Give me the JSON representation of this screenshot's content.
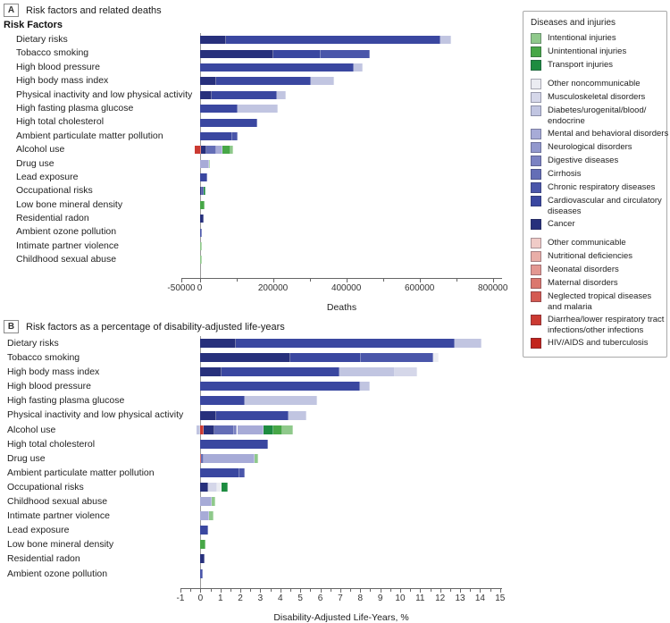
{
  "panelA": {
    "letter": "A",
    "title": "Risk factors and related deaths",
    "heading": "Risk Factors",
    "xlabel": "Deaths"
  },
  "panelB": {
    "letter": "B",
    "title": "Risk factors as a percentage of disability-adjusted life-years",
    "xlabel": "Disability-Adjusted Life-Years, %"
  },
  "colors": {
    "intentional": "#8fc98b",
    "unintentional": "#47a747",
    "transport": "#1d8c40",
    "other_noncommunicable": "#ebecf2",
    "musculoskeletal": "#d5d7e9",
    "diabetes_urogenital": "#c1c5e1",
    "mental": "#a7abd7",
    "neurological": "#9298cd",
    "digestive": "#7b82c2",
    "cirrhosis": "#646eb6",
    "chronic_respiratory": "#4a56aa",
    "cardiovascular": "#3a47a0",
    "cancer": "#27307c",
    "other_communicable": "#f0cbc7",
    "nutritional": "#e9aea8",
    "neonatal": "#e39791",
    "maternal": "#db776e",
    "neglected_tropical": "#d45a52",
    "diarrhea_lri": "#cb3a32",
    "hiv_tb": "#c2241c"
  },
  "legend": {
    "title": "Diseases and injuries",
    "groups": [
      [
        {
          "category": "intentional",
          "label": "Intentional injuries"
        },
        {
          "category": "unintentional",
          "label": "Unintentional injuries"
        },
        {
          "category": "transport",
          "label": "Transport injuries"
        }
      ],
      [
        {
          "category": "other_noncommunicable",
          "label": "Other noncommunicable"
        },
        {
          "category": "musculoskeletal",
          "label": "Musculoskeletal disorders"
        },
        {
          "category": "diabetes_urogenital",
          "label": "Diabetes/urogenital/blood/\nendocrine"
        },
        {
          "category": "mental",
          "label": "Mental and behavioral disorders"
        },
        {
          "category": "neurological",
          "label": "Neurological disorders"
        },
        {
          "category": "digestive",
          "label": "Digestive diseases"
        },
        {
          "category": "cirrhosis",
          "label": "Cirrhosis"
        },
        {
          "category": "chronic_respiratory",
          "label": "Chronic respiratory diseases"
        },
        {
          "category": "cardiovascular",
          "label": "Cardiovascular and circulatory\ndiseases"
        },
        {
          "category": "cancer",
          "label": "Cancer"
        }
      ],
      [
        {
          "category": "other_communicable",
          "label": "Other communicable"
        },
        {
          "category": "nutritional",
          "label": "Nutritional deficiencies"
        },
        {
          "category": "neonatal",
          "label": "Neonatal disorders"
        },
        {
          "category": "maternal",
          "label": "Maternal disorders"
        },
        {
          "category": "neglected_tropical",
          "label": "Neglected tropical diseases\nand malaria"
        },
        {
          "category": "diarrhea_lri",
          "label": "Diarrhea/lower respiratory tract\ninfections/other infections"
        },
        {
          "category": "hiv_tb",
          "label": "HIV/AIDS and tuberculosis"
        }
      ]
    ]
  },
  "chart_data": [
    {
      "type": "bar",
      "orientation": "horizontal-stacked",
      "title": "Risk factors and related deaths",
      "xlabel": "Deaths",
      "xlim": [
        -50000,
        825000
      ],
      "grid": false,
      "legend_position": "right-outside",
      "ticks": {
        "major": [
          {
            "v": -50000,
            "label": "-50000"
          },
          {
            "v": 0,
            "label": "0"
          },
          {
            "v": 200000,
            "label": "200000"
          },
          {
            "v": 400000,
            "label": "400000"
          },
          {
            "v": 600000,
            "label": "600000"
          },
          {
            "v": 800000,
            "label": "800000"
          }
        ],
        "minor": [
          100000,
          300000,
          500000,
          700000
        ]
      },
      "rows": [
        {
          "label": "Dietary risks",
          "segments": [
            [
              "cancer",
              72000
            ],
            [
              "cardiovascular",
              585000
            ],
            [
              "diabetes_urogenital",
              28000
            ]
          ]
        },
        {
          "label": "Tobacco smoking",
          "segments": [
            [
              "cancer",
              200000
            ],
            [
              "cardiovascular",
              130000
            ],
            [
              "chronic_respiratory",
              135000
            ]
          ]
        },
        {
          "label": "High blood pressure",
          "segments": [
            [
              "cardiovascular",
              420000
            ],
            [
              "diabetes_urogenital",
              25000
            ]
          ]
        },
        {
          "label": "High body mass index",
          "segments": [
            [
              "cancer",
              44000
            ],
            [
              "cardiovascular",
              260000
            ],
            [
              "diabetes_urogenital",
              62000
            ]
          ]
        },
        {
          "label": "Physical inactivity and low physical activity",
          "segments": [
            [
              "cancer",
              32000
            ],
            [
              "cardiovascular",
              180000
            ],
            [
              "diabetes_urogenital",
              22000
            ]
          ]
        },
        {
          "label": "High fasting plasma glucose",
          "segments": [
            [
              "cardiovascular",
              104000
            ],
            [
              "diabetes_urogenital",
              110000
            ]
          ]
        },
        {
          "label": "High total cholesterol",
          "segments": [
            [
              "cardiovascular",
              158000
            ]
          ]
        },
        {
          "label": "Ambient particulate matter pollution",
          "segments": [
            [
              "cardiovascular",
              90000
            ],
            [
              "chronic_respiratory",
              13000
            ]
          ]
        },
        {
          "label": "Alcohol use",
          "start": -13000,
          "segments": [
            [
              "diarrhea_lri",
              16000
            ],
            [
              "cancer",
              16000
            ],
            [
              "cirrhosis",
              26000
            ],
            [
              "mental",
              17000
            ],
            [
              "unintentional",
              22000
            ],
            [
              "intentional",
              8000
            ]
          ]
        },
        {
          "label": "Drug use",
          "segments": [
            [
              "cirrhosis",
              2000
            ],
            [
              "mental",
              23000
            ],
            [
              "intentional",
              3000
            ]
          ]
        },
        {
          "label": "Lead exposure",
          "segments": [
            [
              "cardiovascular",
              21000
            ]
          ]
        },
        {
          "label": "Occupational risks",
          "segments": [
            [
              "cancer",
              5000
            ],
            [
              "chronic_respiratory",
              5000
            ],
            [
              "transport",
              6000
            ]
          ]
        },
        {
          "label": "Low bone mineral density",
          "segments": [
            [
              "unintentional",
              13000
            ]
          ]
        },
        {
          "label": "Residential radon",
          "segments": [
            [
              "cancer",
              10000
            ]
          ]
        },
        {
          "label": "Ambient ozone pollution",
          "segments": [
            [
              "chronic_respiratory",
              7000
            ]
          ]
        },
        {
          "label": "Intimate partner violence",
          "segments": [
            [
              "intentional",
              5000
            ]
          ]
        },
        {
          "label": "Childhood sexual abuse",
          "segments": [
            [
              "mental",
              2000
            ],
            [
              "intentional",
              4000
            ]
          ]
        }
      ]
    },
    {
      "type": "bar",
      "orientation": "horizontal-stacked",
      "title": "Risk factors as a percentage of disability-adjusted life-years",
      "xlabel": "Disability-Adjusted Life-Years, %",
      "xlim": [
        -1,
        15.1
      ],
      "grid": false,
      "legend_position": "right-outside",
      "ticks": {
        "major": [
          {
            "v": -1,
            "label": "-1"
          },
          {
            "v": 0,
            "label": "0"
          },
          {
            "v": 1,
            "label": "1"
          },
          {
            "v": 2,
            "label": "2"
          },
          {
            "v": 3,
            "label": "3"
          },
          {
            "v": 4,
            "label": "4"
          },
          {
            "v": 5,
            "label": "5"
          },
          {
            "v": 6,
            "label": "6"
          },
          {
            "v": 7,
            "label": "7"
          },
          {
            "v": 8,
            "label": "8"
          },
          {
            "v": 9,
            "label": "9"
          },
          {
            "v": 10,
            "label": "10"
          },
          {
            "v": 11,
            "label": "11"
          },
          {
            "v": 12,
            "label": "12"
          },
          {
            "v": 13,
            "label": "13"
          },
          {
            "v": 14,
            "label": "14"
          },
          {
            "v": 15,
            "label": "15"
          }
        ],
        "minor": [
          -0.5,
          0.5,
          1.5,
          2.5,
          3.5,
          4.5,
          5.5,
          6.5,
          7.5,
          8.5,
          9.5,
          10.5,
          11.5,
          12.5,
          13.5,
          14.5
        ]
      },
      "rows": [
        {
          "label": "Dietary risks",
          "segments": [
            [
              "cancer",
              1.76
            ],
            [
              "cardiovascular",
              10.96
            ],
            [
              "diabetes_urogenital",
              1.34
            ]
          ]
        },
        {
          "label": "Tobacco smoking",
          "segments": [
            [
              "cancer",
              4.52
            ],
            [
              "cardiovascular",
              3.5
            ],
            [
              "chronic_respiratory",
              3.65
            ],
            [
              "other_noncommunicable",
              0.25
            ]
          ]
        },
        {
          "label": "High body mass index",
          "segments": [
            [
              "cancer",
              1.04
            ],
            [
              "cardiovascular",
              5.94
            ],
            [
              "diabetes_urogenital",
              2.76
            ],
            [
              "musculoskeletal",
              1.09
            ]
          ]
        },
        {
          "label": "High blood pressure",
          "segments": [
            [
              "cardiovascular",
              7.98
            ],
            [
              "diabetes_urogenital",
              0.52
            ]
          ]
        },
        {
          "label": "High fasting plasma glucose",
          "segments": [
            [
              "cardiovascular",
              2.24
            ],
            [
              "diabetes_urogenital",
              3.59
            ]
          ]
        },
        {
          "label": "Physical inactivity and low physical activity",
          "segments": [
            [
              "cancer",
              0.79
            ],
            [
              "cardiovascular",
              3.61
            ],
            [
              "diabetes_urogenital",
              0.91
            ]
          ]
        },
        {
          "label": "Alcohol use",
          "start": -0.21,
          "segments": [
            [
              "diabetes_urogenital",
              0.21
            ],
            [
              "diarrhea_lri",
              0.15
            ],
            [
              "cancer",
              0.57
            ],
            [
              "cirrhosis",
              0.97
            ],
            [
              "digestive",
              0.15
            ],
            [
              "mental",
              1.34
            ],
            [
              "transport",
              0.45
            ],
            [
              "unintentional",
              0.45
            ],
            [
              "intentional",
              0.55
            ]
          ]
        },
        {
          "label": "High total cholesterol",
          "segments": [
            [
              "cardiovascular",
              3.4
            ]
          ]
        },
        {
          "label": "Drug use",
          "segments": [
            [
              "hiv_tb",
              0.05
            ],
            [
              "cirrhosis",
              0.1
            ],
            [
              "mental",
              2.55
            ],
            [
              "intentional",
              0.19
            ]
          ]
        },
        {
          "label": "Ambient particulate matter pollution",
          "segments": [
            [
              "cardiovascular",
              1.95
            ],
            [
              "chronic_respiratory",
              0.25
            ]
          ]
        },
        {
          "label": "Occupational risks",
          "segments": [
            [
              "cancer",
              0.39
            ],
            [
              "musculoskeletal",
              0.45
            ],
            [
              "other_noncommunicable",
              0.21
            ],
            [
              "transport",
              0.34
            ]
          ]
        },
        {
          "label": "Childhood sexual abuse",
          "segments": [
            [
              "mental",
              0.57
            ],
            [
              "intentional",
              0.19
            ]
          ]
        },
        {
          "label": "Intimate partner violence",
          "segments": [
            [
              "mental",
              0.45
            ],
            [
              "intentional",
              0.19
            ]
          ]
        },
        {
          "label": "Lead exposure",
          "segments": [
            [
              "cardiovascular",
              0.37
            ]
          ]
        },
        {
          "label": "Low bone mineral density",
          "segments": [
            [
              "unintentional",
              0.24
            ]
          ]
        },
        {
          "label": "Residential radon",
          "segments": [
            [
              "cancer",
              0.19
            ]
          ]
        },
        {
          "label": "Ambient ozone pollution",
          "segments": [
            [
              "chronic_respiratory",
              0.12
            ]
          ]
        }
      ]
    }
  ]
}
